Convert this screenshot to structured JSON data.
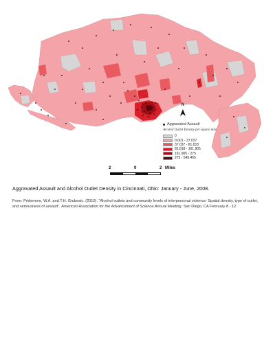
{
  "map": {
    "legend": {
      "marker_label": "Aggravated Assault",
      "title": "Alcohol Outlet Density per square mile",
      "classes": [
        {
          "label": "0",
          "color": "#d6d6d6"
        },
        {
          "label": "0.001 - 37.037",
          "color": "#f4a3a8"
        },
        {
          "label": "37.037 - 81.818",
          "color": "#ea5a61"
        },
        {
          "label": "81.818 - 161.905",
          "color": "#d8202a"
        },
        {
          "label": "161.905 - 275",
          "color": "#a10e16"
        },
        {
          "label": "275 - 545.455",
          "color": "#5c0508"
        }
      ]
    },
    "north_arrow": {
      "letter": "N"
    },
    "scale_bar": {
      "left_label": "2",
      "mid_label": "0",
      "right_label": "2",
      "unit": "Miles"
    }
  },
  "caption": "Aggravated Assault and Alcohol Outlet Density in Cincinnati, Ohio: January - June, 2008.",
  "source": {
    "text_plain": "From: Pridemore, W.A. and T.H. Grubesic.  (2010). “Alcohol outlets and community levels of interpersonal violence: Spatial density, type of outlet, and seriousness of assault”.",
    "text_italic": "American Association for the Advancement of Science Annual Meeting.",
    "text_end": "San Diego, CA February 8 - 12."
  }
}
